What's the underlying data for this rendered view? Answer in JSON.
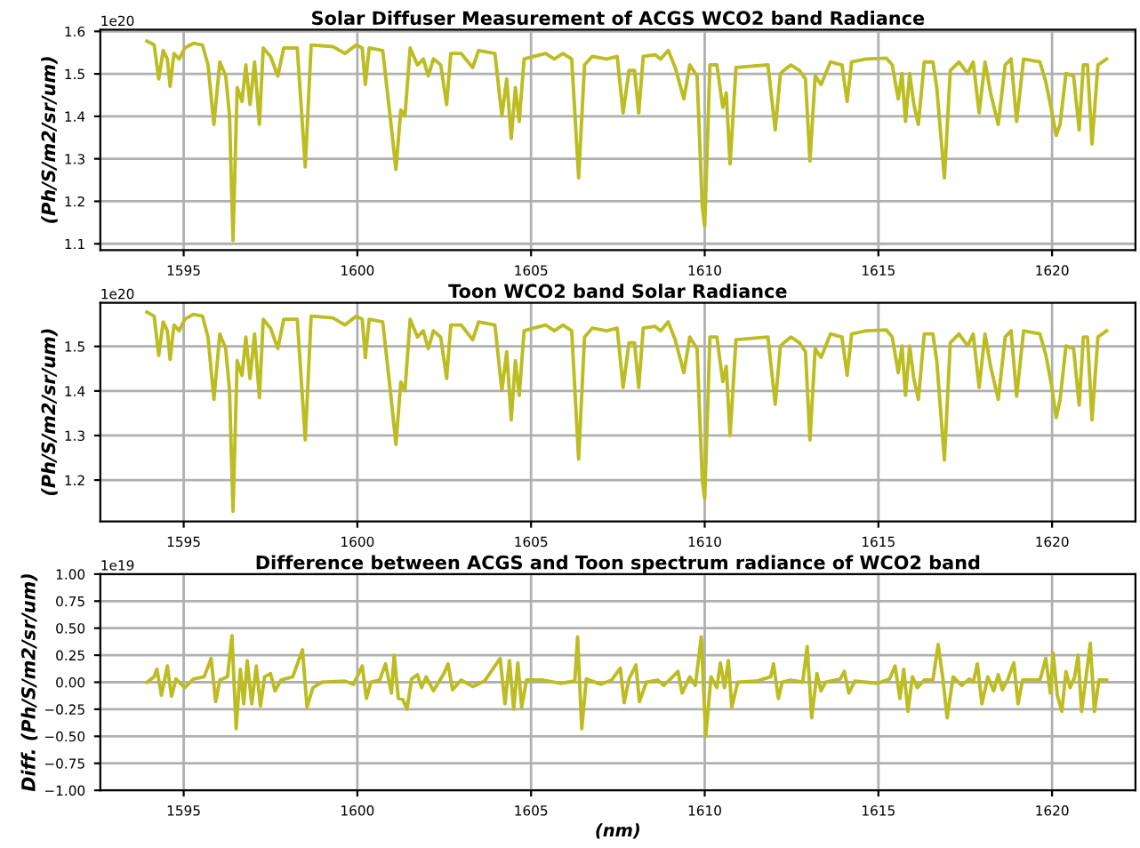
{
  "chart_data": [
    {
      "type": "line",
      "title": "Solar Diffuser Measurement of ACGS WCO2 band Radiance",
      "ylabel": "(Ph/S/m2/sr/um)",
      "annotations": [
        "1e20"
      ],
      "grid": true,
      "x": [
        1593.94,
        1594.15,
        1594.28,
        1594.41,
        1594.53,
        1594.61,
        1594.72,
        1594.87,
        1595.03,
        1595.28,
        1595.54,
        1595.7,
        1595.87,
        1596.04,
        1596.21,
        1596.32,
        1596.42,
        1596.54,
        1596.68,
        1596.79,
        1596.91,
        1597.04,
        1597.18,
        1597.29,
        1597.5,
        1597.71,
        1597.88,
        1598.27,
        1598.5,
        1598.67,
        1599.3,
        1599.64,
        1599.97,
        1600.14,
        1600.23,
        1600.34,
        1600.73,
        1600.95,
        1601.11,
        1601.25,
        1601.37,
        1601.52,
        1601.73,
        1601.9,
        1602.04,
        1602.19,
        1602.4,
        1602.57,
        1602.69,
        1602.99,
        1603.32,
        1603.49,
        1603.96,
        1604.16,
        1604.3,
        1604.43,
        1604.55,
        1604.66,
        1604.8,
        1605.08,
        1605.42,
        1605.67,
        1605.92,
        1606.17,
        1606.37,
        1606.54,
        1606.76,
        1607.18,
        1607.48,
        1607.65,
        1607.82,
        1607.98,
        1608.1,
        1608.23,
        1608.57,
        1608.73,
        1608.95,
        1609.15,
        1609.4,
        1609.57,
        1609.78,
        1609.93,
        1610.0,
        1610.15,
        1610.35,
        1610.52,
        1610.62,
        1610.73,
        1610.9,
        1611.82,
        1612.03,
        1612.18,
        1612.32,
        1612.48,
        1612.73,
        1612.9,
        1613.03,
        1613.18,
        1613.35,
        1613.62,
        1613.95,
        1614.1,
        1614.23,
        1614.65,
        1615.23,
        1615.4,
        1615.57,
        1615.68,
        1615.78,
        1615.9,
        1616.02,
        1616.15,
        1616.32,
        1616.57,
        1616.68,
        1616.9,
        1617.07,
        1617.32,
        1617.57,
        1617.73,
        1617.9,
        1618.07,
        1618.23,
        1618.45,
        1618.65,
        1618.82,
        1618.98,
        1619.18,
        1619.65,
        1619.82,
        1619.98,
        1620.12,
        1620.23,
        1620.4,
        1620.62,
        1620.78,
        1620.9,
        1621.02,
        1621.15,
        1621.32,
        1621.57
      ],
      "series": [
        {
          "color": "#bcbd22",
          "values": [
            1.577,
            1.568,
            1.488,
            1.555,
            1.535,
            1.471,
            1.548,
            1.535,
            1.561,
            1.572,
            1.568,
            1.521,
            1.381,
            1.528,
            1.495,
            1.401,
            1.108,
            1.468,
            1.435,
            1.521,
            1.428,
            1.528,
            1.381,
            1.561,
            1.541,
            1.495,
            1.561,
            1.561,
            1.281,
            1.568,
            1.564,
            1.548,
            1.568,
            1.561,
            1.475,
            1.561,
            1.555,
            1.395,
            1.275,
            1.415,
            1.401,
            1.561,
            1.521,
            1.535,
            1.495,
            1.535,
            1.521,
            1.428,
            1.548,
            1.548,
            1.515,
            1.555,
            1.548,
            1.401,
            1.488,
            1.348,
            1.468,
            1.388,
            1.535,
            1.541,
            1.548,
            1.535,
            1.548,
            1.535,
            1.255,
            1.521,
            1.541,
            1.535,
            1.541,
            1.408,
            1.508,
            1.508,
            1.408,
            1.541,
            1.545,
            1.535,
            1.555,
            1.515,
            1.441,
            1.521,
            1.495,
            1.188,
            1.141,
            1.521,
            1.521,
            1.421,
            1.455,
            1.288,
            1.515,
            1.521,
            1.368,
            1.501,
            1.511,
            1.521,
            1.508,
            1.488,
            1.295,
            1.495,
            1.475,
            1.528,
            1.521,
            1.435,
            1.528,
            1.535,
            1.537,
            1.521,
            1.441,
            1.501,
            1.388,
            1.501,
            1.428,
            1.381,
            1.528,
            1.528,
            1.468,
            1.255,
            1.508,
            1.528,
            1.501,
            1.528,
            1.408,
            1.528,
            1.455,
            1.381,
            1.521,
            1.535,
            1.388,
            1.535,
            1.528,
            1.481,
            1.415,
            1.355,
            1.381,
            1.501,
            1.495,
            1.368,
            1.521,
            1.521,
            1.335,
            1.521,
            1.535
          ]
        }
      ],
      "xlim": [
        1592.6,
        1622.4
      ],
      "xticks": [
        1595,
        1600,
        1605,
        1610,
        1615,
        1620
      ],
      "ylim": [
        1.085,
        1.604
      ],
      "yticks": [
        1.1,
        1.2,
        1.3,
        1.4,
        1.5,
        1.6
      ]
    },
    {
      "type": "line",
      "title": "Toon WCO2 band Solar Radiance",
      "ylabel": "(Ph/S/m2/sr/um)",
      "annotations": [
        "1e20"
      ],
      "grid": true,
      "x": [
        1593.94,
        1594.15,
        1594.28,
        1594.41,
        1594.53,
        1594.61,
        1594.72,
        1594.87,
        1595.03,
        1595.28,
        1595.54,
        1595.7,
        1595.87,
        1596.04,
        1596.21,
        1596.32,
        1596.42,
        1596.54,
        1596.68,
        1596.79,
        1596.91,
        1597.04,
        1597.18,
        1597.29,
        1597.5,
        1597.71,
        1597.88,
        1598.27,
        1598.5,
        1598.67,
        1599.3,
        1599.64,
        1599.97,
        1600.14,
        1600.23,
        1600.34,
        1600.73,
        1600.95,
        1601.11,
        1601.25,
        1601.37,
        1601.52,
        1601.73,
        1601.9,
        1602.04,
        1602.19,
        1602.4,
        1602.57,
        1602.69,
        1602.99,
        1603.32,
        1603.49,
        1603.96,
        1604.16,
        1604.3,
        1604.43,
        1604.55,
        1604.66,
        1604.8,
        1605.08,
        1605.42,
        1605.67,
        1605.92,
        1606.17,
        1606.37,
        1606.54,
        1606.76,
        1607.18,
        1607.48,
        1607.65,
        1607.82,
        1607.98,
        1608.1,
        1608.23,
        1608.57,
        1608.73,
        1608.95,
        1609.15,
        1609.4,
        1609.57,
        1609.78,
        1609.93,
        1610.0,
        1610.15,
        1610.35,
        1610.52,
        1610.62,
        1610.73,
        1610.9,
        1611.82,
        1612.03,
        1612.18,
        1612.32,
        1612.48,
        1612.73,
        1612.9,
        1613.03,
        1613.18,
        1613.35,
        1613.62,
        1613.95,
        1614.1,
        1614.23,
        1614.65,
        1615.23,
        1615.4,
        1615.57,
        1615.68,
        1615.78,
        1615.9,
        1616.02,
        1616.15,
        1616.32,
        1616.57,
        1616.68,
        1616.9,
        1617.07,
        1617.32,
        1617.57,
        1617.73,
        1617.9,
        1618.07,
        1618.23,
        1618.45,
        1618.65,
        1618.82,
        1618.98,
        1619.18,
        1619.65,
        1619.82,
        1619.98,
        1620.12,
        1620.23,
        1620.4,
        1620.62,
        1620.78,
        1620.9,
        1621.02,
        1621.15,
        1621.32,
        1621.57
      ],
      "series": [
        {
          "color": "#bcbd22",
          "values": [
            1.577,
            1.568,
            1.48,
            1.555,
            1.535,
            1.471,
            1.548,
            1.535,
            1.561,
            1.572,
            1.568,
            1.521,
            1.381,
            1.528,
            1.495,
            1.401,
            1.13,
            1.468,
            1.435,
            1.521,
            1.428,
            1.528,
            1.385,
            1.561,
            1.541,
            1.495,
            1.561,
            1.561,
            1.29,
            1.568,
            1.564,
            1.548,
            1.568,
            1.561,
            1.475,
            1.561,
            1.555,
            1.4,
            1.28,
            1.42,
            1.401,
            1.561,
            1.521,
            1.535,
            1.495,
            1.535,
            1.521,
            1.428,
            1.548,
            1.548,
            1.515,
            1.555,
            1.548,
            1.401,
            1.488,
            1.335,
            1.468,
            1.39,
            1.535,
            1.541,
            1.548,
            1.535,
            1.548,
            1.535,
            1.247,
            1.521,
            1.541,
            1.535,
            1.541,
            1.408,
            1.508,
            1.508,
            1.408,
            1.541,
            1.545,
            1.535,
            1.555,
            1.515,
            1.441,
            1.521,
            1.495,
            1.2,
            1.158,
            1.521,
            1.521,
            1.421,
            1.455,
            1.3,
            1.515,
            1.521,
            1.37,
            1.501,
            1.511,
            1.521,
            1.508,
            1.488,
            1.29,
            1.495,
            1.475,
            1.528,
            1.521,
            1.435,
            1.528,
            1.535,
            1.537,
            1.521,
            1.441,
            1.501,
            1.39,
            1.501,
            1.428,
            1.381,
            1.528,
            1.528,
            1.468,
            1.245,
            1.508,
            1.528,
            1.501,
            1.528,
            1.408,
            1.528,
            1.455,
            1.381,
            1.521,
            1.535,
            1.388,
            1.535,
            1.528,
            1.481,
            1.415,
            1.34,
            1.381,
            1.501,
            1.495,
            1.368,
            1.521,
            1.521,
            1.335,
            1.521,
            1.535
          ]
        }
      ],
      "xlim": [
        1592.6,
        1622.4
      ],
      "xticks": [
        1595,
        1600,
        1605,
        1610,
        1615,
        1620
      ],
      "ylim": [
        1.107,
        1.598
      ],
      "yticks": [
        1.2,
        1.3,
        1.4,
        1.5
      ]
    },
    {
      "type": "line",
      "title": "Difference between ACGS and Toon spectrum radiance of WCO2 band",
      "xlabel": "(nm)",
      "ylabel": "Diff. (Ph/S/m2/sr/um)",
      "annotations": [
        "1e19"
      ],
      "grid": true,
      "x": [
        1593.94,
        1594.15,
        1594.23,
        1594.36,
        1594.53,
        1594.65,
        1594.78,
        1595.03,
        1595.28,
        1595.59,
        1595.79,
        1595.92,
        1596.04,
        1596.26,
        1596.39,
        1596.51,
        1596.63,
        1596.73,
        1596.83,
        1596.96,
        1597.09,
        1597.21,
        1597.33,
        1597.5,
        1597.63,
        1597.8,
        1598.14,
        1598.42,
        1598.55,
        1598.72,
        1598.97,
        1599.64,
        1599.89,
        1600.14,
        1600.26,
        1600.39,
        1600.64,
        1600.81,
        1600.98,
        1601.06,
        1601.18,
        1601.31,
        1601.43,
        1601.56,
        1601.73,
        1601.85,
        1601.98,
        1602.19,
        1602.49,
        1602.61,
        1602.74,
        1602.99,
        1603.32,
        1603.66,
        1604.11,
        1604.25,
        1604.38,
        1604.5,
        1604.62,
        1604.73,
        1604.87,
        1605.34,
        1605.84,
        1606.26,
        1606.34,
        1606.46,
        1606.59,
        1607.01,
        1607.32,
        1607.57,
        1607.68,
        1607.82,
        1608.02,
        1608.12,
        1608.32,
        1608.65,
        1608.82,
        1608.98,
        1609.23,
        1609.35,
        1609.57,
        1609.73,
        1609.9,
        1610.03,
        1610.18,
        1610.35,
        1610.45,
        1610.57,
        1610.68,
        1610.78,
        1610.95,
        1611.48,
        1611.9,
        1611.98,
        1612.12,
        1612.23,
        1612.48,
        1612.82,
        1612.95,
        1613.08,
        1613.23,
        1613.35,
        1613.48,
        1613.9,
        1614.02,
        1614.15,
        1614.32,
        1614.98,
        1615.32,
        1615.48,
        1615.62,
        1615.73,
        1615.85,
        1615.98,
        1616.12,
        1616.32,
        1616.57,
        1616.72,
        1616.85,
        1616.98,
        1617.15,
        1617.4,
        1617.62,
        1617.73,
        1617.85,
        1617.98,
        1618.15,
        1618.32,
        1618.45,
        1618.57,
        1618.73,
        1618.9,
        1619.02,
        1619.15,
        1619.65,
        1619.82,
        1619.95,
        1620.03,
        1620.15,
        1620.28,
        1620.4,
        1620.52,
        1620.65,
        1620.75,
        1620.85,
        1620.98,
        1621.1,
        1621.22,
        1621.35,
        1621.57
      ],
      "series": [
        {
          "color": "#bcbd22",
          "values": [
            0.0,
            0.05,
            0.12,
            -0.12,
            0.15,
            -0.13,
            0.03,
            -0.05,
            0.03,
            0.05,
            0.22,
            -0.18,
            0.02,
            0.05,
            0.43,
            -0.43,
            0.12,
            -0.2,
            0.2,
            -0.2,
            0.15,
            -0.22,
            0.05,
            0.08,
            -0.08,
            0.02,
            0.05,
            0.3,
            -0.23,
            -0.05,
            0.0,
            0.01,
            -0.02,
            0.15,
            -0.15,
            0.0,
            0.02,
            0.17,
            -0.1,
            0.25,
            -0.15,
            -0.16,
            -0.25,
            0.03,
            0.07,
            -0.05,
            0.05,
            -0.08,
            0.08,
            0.17,
            -0.07,
            0.02,
            -0.04,
            0.01,
            0.22,
            -0.2,
            0.2,
            -0.25,
            0.18,
            -0.23,
            0.02,
            0.02,
            -0.01,
            0.01,
            0.42,
            -0.43,
            0.03,
            -0.02,
            0.02,
            0.13,
            -0.19,
            0.03,
            0.16,
            -0.18,
            0.0,
            0.02,
            -0.03,
            0.02,
            0.1,
            -0.1,
            0.05,
            -0.03,
            0.42,
            -0.5,
            0.05,
            -0.05,
            0.18,
            -0.05,
            0.2,
            -0.23,
            0.0,
            0.01,
            0.05,
            0.17,
            -0.15,
            0.0,
            0.02,
            0.0,
            0.33,
            -0.33,
            0.08,
            -0.08,
            0.0,
            0.03,
            0.1,
            -0.1,
            0.01,
            -0.01,
            0.03,
            0.15,
            -0.15,
            0.12,
            -0.27,
            0.05,
            -0.05,
            0.02,
            0.02,
            0.35,
            0.05,
            -0.33,
            0.05,
            -0.03,
            0.03,
            0.0,
            0.17,
            -0.2,
            0.05,
            -0.08,
            0.07,
            -0.07,
            0.03,
            0.18,
            -0.2,
            0.02,
            0.02,
            0.22,
            -0.1,
            0.27,
            -0.12,
            -0.27,
            0.1,
            -0.05,
            0.05,
            0.25,
            -0.27,
            0.05,
            0.36,
            -0.27,
            0.02,
            0.02
          ]
        }
      ],
      "xlim": [
        1592.6,
        1622.4
      ],
      "xticks": [
        1595,
        1600,
        1605,
        1610,
        1615,
        1620
      ],
      "ylim": [
        -1,
        1
      ],
      "yticks": [
        {
          "value": -1,
          "label": "−1.00"
        },
        {
          "value": -0.75,
          "label": "−0.75"
        },
        {
          "value": -0.5,
          "label": "−0.50"
        },
        {
          "value": -0.25,
          "label": "−0.25"
        },
        {
          "value": 0,
          "label": "0.00"
        },
        {
          "value": 0.25,
          "label": "0.25"
        },
        {
          "value": 0.5,
          "label": "0.50"
        },
        {
          "value": 0.75,
          "label": "0.75"
        },
        {
          "value": 1,
          "label": "1.00"
        }
      ]
    }
  ]
}
